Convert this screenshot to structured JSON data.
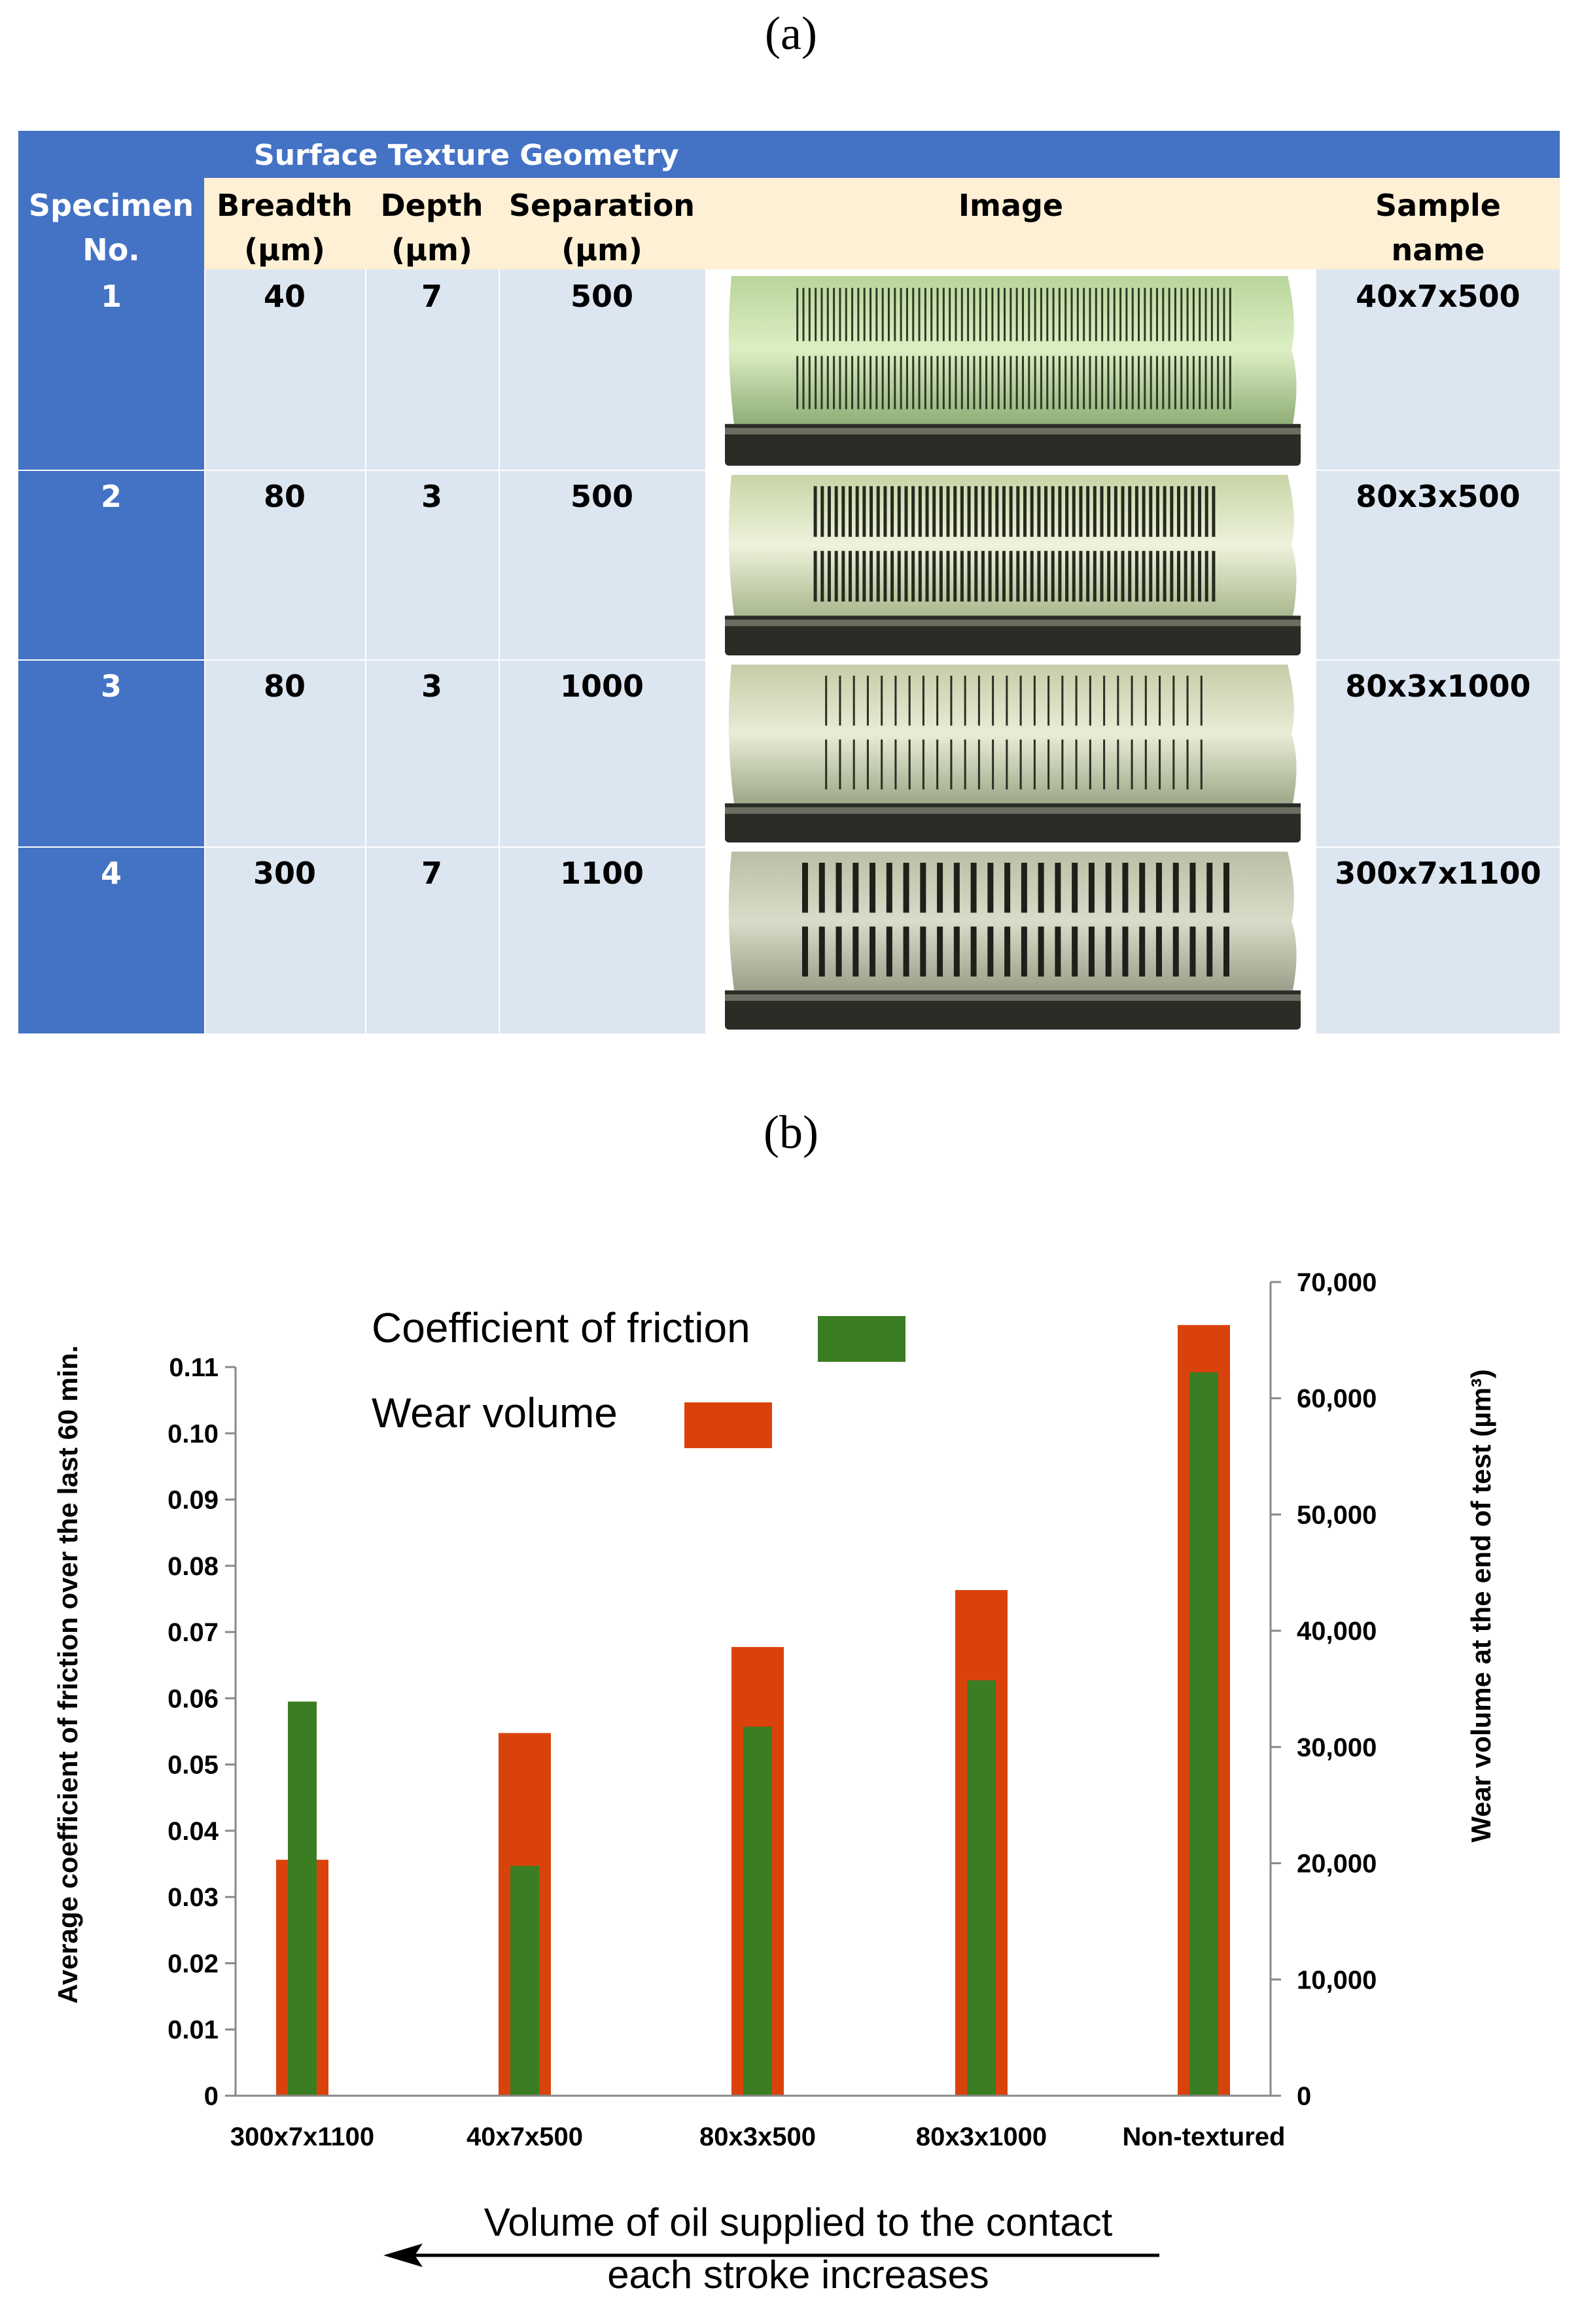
{
  "panels": {
    "a": "(a)",
    "b": "(b)"
  },
  "table": {
    "title": "Surface Texture Geometry",
    "headers": [
      {
        "l1": "Specimen",
        "l2": "No."
      },
      {
        "l1": "Breadth",
        "l2": "(µm)"
      },
      {
        "l1": "Depth",
        "l2": "(µm)"
      },
      {
        "l1": "Separation",
        "l2": "(µm)"
      },
      {
        "l1": "Image",
        "l2": ""
      },
      {
        "l1": "Sample",
        "l2": "name"
      }
    ],
    "rows": [
      {
        "no": "1",
        "breadth": "40",
        "depth": "7",
        "separation": "500",
        "name": "40x7x500",
        "photo": "green-tinted steel specimen with two rows of fine grooves"
      },
      {
        "no": "2",
        "breadth": "80",
        "depth": "3",
        "separation": "500",
        "name": "80x3x500",
        "photo": "pale steel specimen with two rows of dense grooves"
      },
      {
        "no": "3",
        "breadth": "80",
        "depth": "3",
        "separation": "1000",
        "name": "80x3x1000",
        "photo": "steel specimen with two rows of thin spaced grooves"
      },
      {
        "no": "4",
        "breadth": "300",
        "depth": "7",
        "separation": "1100",
        "name": "300x7x1100",
        "photo": "grey steel specimen with two rows of wide grooves"
      }
    ]
  },
  "chart_data": {
    "type": "bar",
    "categories": [
      "300x7x1100",
      "40x7x500",
      "80x3x500",
      "80x3x1000",
      "Non-textured"
    ],
    "series": [
      {
        "name": "Wear volume",
        "axis": "right",
        "color": "#d9430b",
        "values": [
          20300,
          31200,
          38600,
          43500,
          66300
        ]
      },
      {
        "name": "Coefficient of friction",
        "axis": "left",
        "color": "#3a7d22",
        "values": [
          0.0595,
          0.0347,
          0.0557,
          0.0627,
          0.1092
        ]
      }
    ],
    "left_axis": {
      "label": "Average coefficient of friction over the last 60 min.",
      "ylim": [
        0,
        0.11
      ],
      "ticks": [
        0,
        0.01,
        0.02,
        0.03,
        0.04,
        0.05,
        0.06,
        0.07,
        0.08,
        0.09,
        0.1,
        0.11
      ],
      "tick_labels": [
        "0",
        "0.01",
        "0.02",
        "0.03",
        "0.04",
        "0.05",
        "0.06",
        "0.07",
        "0.08",
        "0.09",
        "0.10",
        "0.11"
      ]
    },
    "right_axis": {
      "label": "Wear volume at the end of test (µm³)",
      "ylim": [
        0,
        70000
      ],
      "ticks": [
        0,
        10000,
        20000,
        30000,
        40000,
        50000,
        60000,
        70000
      ],
      "tick_labels": [
        "0",
        "10,000",
        "20,000",
        "30,000",
        "40,000",
        "50,000",
        "60,000",
        "70,000"
      ]
    },
    "legend": [
      "Coefficient of friction",
      "Wear volume"
    ],
    "annotation": {
      "line1": "Volume of oil supplied to the contact",
      "line2": "each stroke increases"
    }
  }
}
